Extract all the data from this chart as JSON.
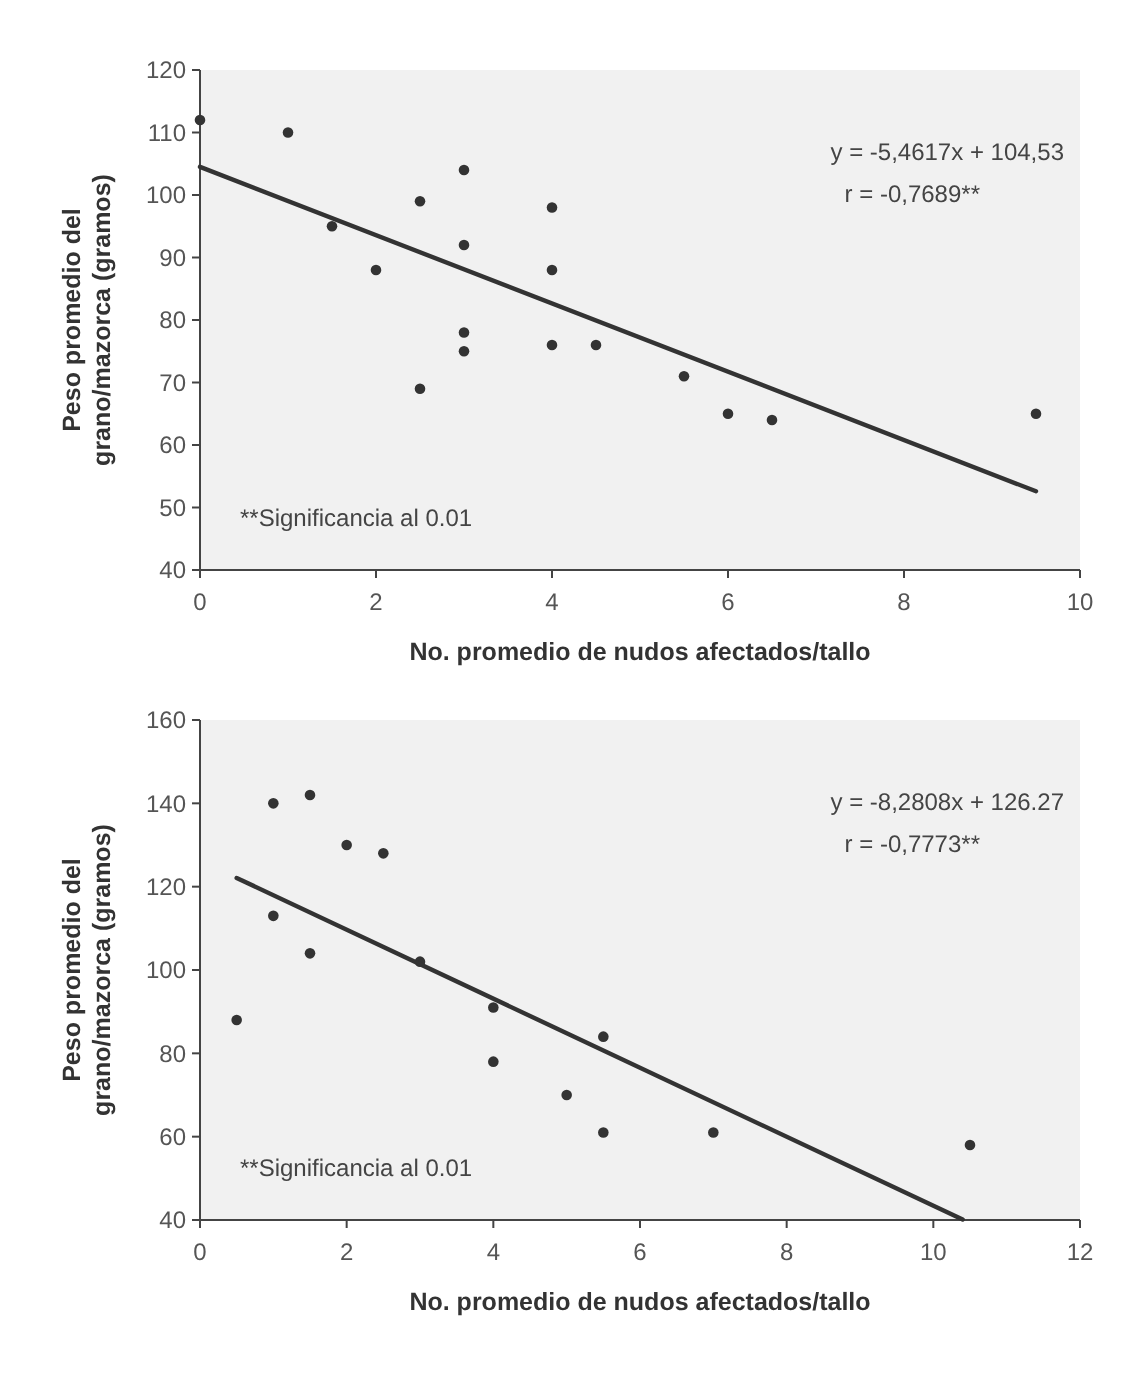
{
  "chart_data": [
    {
      "type": "scatter",
      "xlabel": "No. promedio de nudos afectados/tallo",
      "ylabel": "Peso promedio del grano/mazorca (gramos)",
      "xlim": [
        0,
        10
      ],
      "xticks": [
        0,
        2,
        4,
        6,
        8,
        10
      ],
      "ylim": [
        40,
        120
      ],
      "yticks": [
        40,
        50,
        60,
        70,
        80,
        90,
        100,
        110,
        120
      ],
      "grid": false,
      "annotations": [
        "y = -5,4617x + 104,53",
        "r = -0,7689**",
        "**Significancia  al 0.01"
      ],
      "series": [
        {
          "marker": "circle",
          "color": "#333333",
          "x": [
            0,
            1,
            1.5,
            2,
            2.5,
            2.5,
            3,
            3,
            3,
            3,
            4,
            4,
            4,
            4.5,
            5.5,
            6,
            6.5,
            9.5
          ],
          "values": [
            112,
            110,
            95,
            88,
            99,
            69,
            104,
            92,
            78,
            75,
            98,
            88,
            76,
            76,
            71,
            65,
            64,
            65
          ]
        },
        {
          "type": "line",
          "color": "#333333",
          "x": [
            0,
            9.5
          ],
          "values": [
            104.5,
            52.6
          ]
        }
      ]
    },
    {
      "type": "scatter",
      "xlabel": "No. promedio de nudos afectados/tallo",
      "ylabel": "Peso promedio del grano/mazorca (gramos)",
      "xlim": [
        0,
        12
      ],
      "xticks": [
        0,
        2,
        4,
        6,
        8,
        10,
        12
      ],
      "ylim": [
        40,
        160
      ],
      "yticks": [
        40,
        60,
        80,
        100,
        120,
        140,
        160
      ],
      "grid": false,
      "annotations": [
        "y = -8,2808x + 126.27",
        "r = -0,7773**",
        "**Significancia  al 0.01"
      ],
      "series": [
        {
          "marker": "circle",
          "color": "#333333",
          "x": [
            0.5,
            1,
            1,
            1.5,
            1.5,
            2,
            2.5,
            3,
            4,
            4,
            5,
            5.5,
            5.5,
            7,
            10.5
          ],
          "values": [
            88,
            140,
            113,
            142,
            104,
            130,
            128,
            102,
            91,
            78,
            70,
            84,
            61,
            61,
            58
          ]
        },
        {
          "type": "line",
          "color": "#333333",
          "x": [
            0.5,
            10.4
          ],
          "values": [
            122.1,
            40.1
          ]
        }
      ]
    }
  ]
}
